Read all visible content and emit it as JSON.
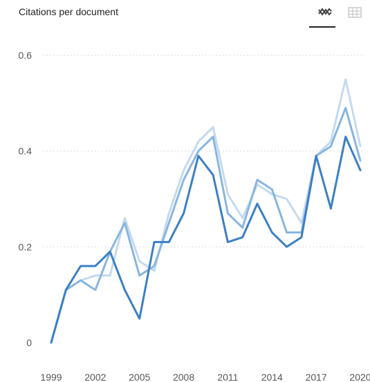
{
  "header": {
    "title": "Citations per document",
    "views": [
      {
        "icon": "line-chart-icon",
        "active": true
      },
      {
        "icon": "table-grid-icon",
        "active": false
      }
    ]
  },
  "chart_data": {
    "type": "line",
    "title": "Citations per document",
    "xlabel": "",
    "ylabel": "",
    "x": [
      1999,
      2000,
      2001,
      2002,
      2003,
      2004,
      2005,
      2006,
      2007,
      2008,
      2009,
      2010,
      2011,
      2012,
      2013,
      2014,
      2015,
      2016,
      2017,
      2018,
      2019,
      2020
    ],
    "ylim": [
      0,
      0.6
    ],
    "yticks": [
      0,
      0.2,
      0.4,
      0.6
    ],
    "ytick_labels": [
      "0",
      "0.2",
      "0.4",
      "0.6"
    ],
    "xticks": [
      1999,
      2002,
      2005,
      2008,
      2011,
      2014,
      2017,
      2020
    ],
    "xtick_labels": [
      "1999",
      "2002",
      "2005",
      "2008",
      "2011",
      "2014",
      "2017",
      "2020"
    ],
    "grid": "horizontal-dotted",
    "legend": "none",
    "series": [
      {
        "color": "#c3d9ef",
        "values": [
          0.0,
          0.11,
          0.13,
          0.14,
          0.14,
          0.26,
          0.17,
          0.15,
          0.27,
          0.36,
          0.42,
          0.45,
          0.31,
          0.26,
          0.33,
          0.31,
          0.3,
          0.25,
          0.39,
          0.42,
          0.55,
          0.41
        ]
      },
      {
        "color": "#87b5e0",
        "values": [
          0.0,
          0.11,
          0.13,
          0.11,
          0.19,
          0.25,
          0.14,
          0.16,
          0.25,
          0.34,
          0.4,
          0.43,
          0.27,
          0.24,
          0.34,
          0.32,
          0.23,
          0.23,
          0.39,
          0.41,
          0.49,
          0.38
        ]
      },
      {
        "color": "#3b7fc6",
        "values": [
          0.0,
          0.11,
          0.16,
          0.16,
          0.19,
          0.11,
          0.05,
          0.21,
          0.21,
          0.27,
          0.39,
          0.35,
          0.21,
          0.22,
          0.29,
          0.23,
          0.2,
          0.22,
          0.39,
          0.28,
          0.43,
          0.36
        ]
      }
    ]
  }
}
